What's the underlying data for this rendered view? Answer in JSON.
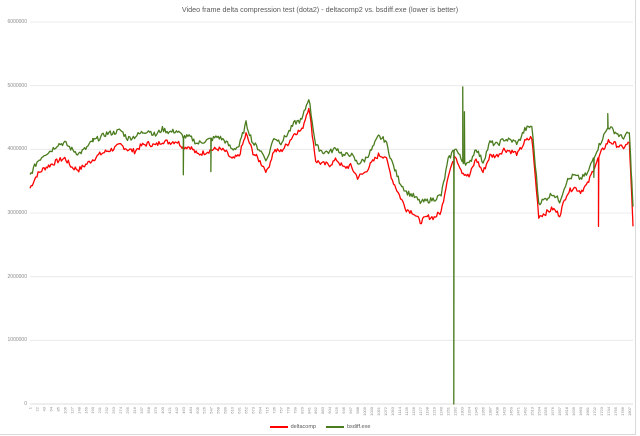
{
  "chart_data": {
    "type": "line",
    "title": "Video frame delta compression test (dota2) - deltacomp2 vs. bsdiff.exe (lower is better)",
    "xlabel": "",
    "ylabel": "",
    "ylim": [
      0,
      6000000
    ],
    "yticks": [
      "0",
      "1000000",
      "2000000",
      "3000000",
      "4000000",
      "5000000",
      "6000000"
    ],
    "xlim": [
      1,
      1818
    ],
    "x_tick_step": 21,
    "x_tick_first": 1,
    "x_tick_last": 1807,
    "grid": true,
    "legend_position": "bottom",
    "x": [
      1,
      22,
      43,
      64,
      85,
      106,
      127,
      148,
      169,
      190,
      211,
      232,
      253,
      274,
      295,
      316,
      337,
      358,
      379,
      400,
      421,
      442,
      463,
      484,
      505,
      526,
      547,
      568,
      589,
      610,
      631,
      652,
      673,
      694,
      715,
      736,
      757,
      778,
      799,
      820,
      841,
      862,
      883,
      904,
      925,
      946,
      967,
      988,
      1009,
      1030,
      1051,
      1072,
      1093,
      1114,
      1135,
      1156,
      1177,
      1198,
      1219,
      1240,
      1261,
      1282,
      1303,
      1324,
      1345,
      1366,
      1387,
      1408,
      1429,
      1450,
      1471,
      1492,
      1513,
      1534,
      1555,
      1576,
      1597,
      1618,
      1639,
      1660,
      1681,
      1702,
      1723,
      1744,
      1765,
      1786,
      1807,
      1818
    ],
    "series": [
      {
        "name": "deltacomp",
        "color": "#ff0000",
        "values": [
          3390000,
          3600000,
          3700000,
          3760000,
          3820000,
          3860000,
          3720000,
          3680000,
          3760000,
          3840000,
          3920000,
          3970000,
          4010000,
          4070000,
          4000000,
          3970000,
          4060000,
          4090000,
          4060000,
          4130000,
          4110000,
          4130000,
          4040000,
          4040000,
          3920000,
          3950000,
          3990000,
          4010000,
          3970000,
          3840000,
          3900000,
          4240000,
          3950000,
          3810000,
          3650000,
          3980000,
          3970000,
          4090000,
          4260000,
          4300000,
          4670000,
          3820000,
          3770000,
          3760000,
          3840000,
          3710000,
          3740000,
          3560000,
          3630000,
          3780000,
          3910000,
          3890000,
          3520000,
          3280000,
          3060000,
          3010000,
          2860000,
          2940000,
          2930000,
          3020000,
          3600000,
          3910000,
          3650000,
          3570000,
          3850000,
          3640000,
          3900000,
          3900000,
          4000000,
          3970000,
          3930000,
          4120000,
          4190000,
          2950000,
          3000000,
          3070000,
          2970000,
          3300000,
          3410000,
          3340000,
          3450000,
          3730000,
          3960000,
          4130000,
          4080000,
          4020000,
          4100000,
          2790000
        ],
        "spikes": [
          {
            "x": 1278,
            "value": 3660000
          },
          {
            "x": 1714,
            "value": 2790000
          }
        ]
      },
      {
        "name": "bsdiff.exe",
        "color": "#4a7c1e",
        "values": [
          3590000,
          3800000,
          3920000,
          3980000,
          4080000,
          4100000,
          4000000,
          3930000,
          4010000,
          4130000,
          4180000,
          4250000,
          4260000,
          4300000,
          4170000,
          4200000,
          4260000,
          4300000,
          4220000,
          4320000,
          4270000,
          4290000,
          4200000,
          4190000,
          4090000,
          4130000,
          4160000,
          4200000,
          4130000,
          4000000,
          4050000,
          4410000,
          4100000,
          3990000,
          3830000,
          4190000,
          4110000,
          4250000,
          4420000,
          4460000,
          4810000,
          4060000,
          3960000,
          3960000,
          4020000,
          3900000,
          3930000,
          3780000,
          3830000,
          3990000,
          4200000,
          4140000,
          3780000,
          3500000,
          3330000,
          3270000,
          3170000,
          3190000,
          3220000,
          3280000,
          3830000,
          4030000,
          3820000,
          3760000,
          4020000,
          3800000,
          4110000,
          4070000,
          4160000,
          4140000,
          4100000,
          4310000,
          4370000,
          3160000,
          3220000,
          3310000,
          3190000,
          3500000,
          3590000,
          3540000,
          3620000,
          3910000,
          4140000,
          4360000,
          4270000,
          4180000,
          4260000,
          3100000
        ],
        "spikes": [
          {
            "x": 190,
            "value": 4170000
          },
          {
            "x": 463,
            "value": 3600000
          },
          {
            "x": 546,
            "value": 3650000
          },
          {
            "x": 1278,
            "value": 0
          },
          {
            "x": 1305,
            "value": 4980000
          },
          {
            "x": 1310,
            "value": 4590000
          },
          {
            "x": 1700,
            "value": 3560000
          },
          {
            "x": 1742,
            "value": 4560000
          }
        ]
      }
    ]
  },
  "legend": {
    "items": [
      {
        "label": "deltacomp",
        "color": "#ff0000"
      },
      {
        "label": "bsdiff.exe",
        "color": "#4a7c1e"
      }
    ]
  }
}
